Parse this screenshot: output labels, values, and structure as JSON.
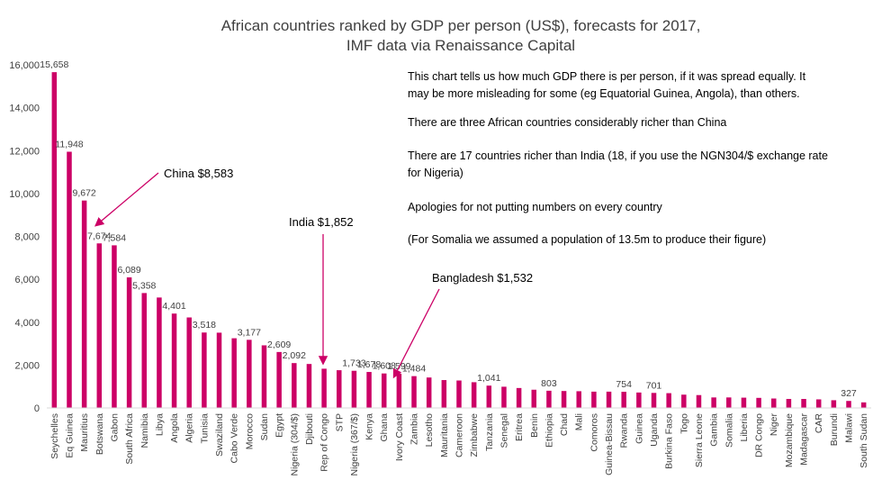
{
  "chart_data": {
    "type": "bar",
    "title": [
      "African countries ranked by GDP per person (US$), forecasts for 2017,",
      "IMF data via Renaissance Capital"
    ],
    "xlabel": "",
    "ylabel": "",
    "ylim": [
      0,
      16000
    ],
    "yticks": [
      "0",
      "2,000",
      "4,000",
      "6,000",
      "8,000",
      "10,000",
      "12,000",
      "14,000",
      "16,000"
    ],
    "grid": false,
    "legend": "none",
    "bar_color": "#cc0066",
    "categories": [
      "Seychelles",
      "Eq Guinea",
      "Mauritius",
      "Botswana",
      "Gabon",
      "South Africa",
      "Namibia",
      "Libya",
      "Angola",
      "Algeria",
      "Tunisia",
      "Swaziland",
      "Cabo Verde",
      "Morocco",
      "Sudan",
      "Egypt",
      "Nigeria (304/$)",
      "Djibouti",
      "Rep of Congo",
      "STP",
      "Nigeria (367/$)",
      "Kenya",
      "Ghana",
      "Ivory Coast",
      "Zambia",
      "Lesotho",
      "Mauritania",
      "Cameroon",
      "Zimbabwe",
      "Tanzania",
      "Senegal",
      "Eritrea",
      "Benin",
      "Ethiopia",
      "Chad",
      "Mali",
      "Comoros",
      "Guinea-Bissau",
      "Rwanda",
      "Guinea",
      "Uganda",
      "Burkina Faso",
      "Togo",
      "Sierra Leone",
      "Gambia",
      "Somalia",
      "Liberia",
      "DR Congo",
      "Niger",
      "Mozambique",
      "Madagascar",
      "CAR",
      "Burundi",
      "Malawi",
      "South Sudan"
    ],
    "values": [
      15658,
      11948,
      9672,
      7674,
      7584,
      6089,
      5358,
      5150,
      4401,
      4220,
      3518,
      3510,
      3250,
      3177,
      2920,
      2609,
      2092,
      2050,
      1830,
      1760,
      1733,
      1678,
      1608,
      1599,
      1484,
      1420,
      1300,
      1280,
      1200,
      1041,
      990,
      930,
      850,
      803,
      790,
      780,
      760,
      760,
      754,
      720,
      701,
      690,
      620,
      600,
      490,
      490,
      480,
      470,
      440,
      420,
      420,
      400,
      360,
      327,
      260
    ],
    "data_labels": [
      {
        "index": 0,
        "text": "15,658"
      },
      {
        "index": 1,
        "text": "11,948"
      },
      {
        "index": 2,
        "text": "9,672"
      },
      {
        "index": 3,
        "text": "7,674"
      },
      {
        "index": 4,
        "text": "7,584"
      },
      {
        "index": 5,
        "text": "6,089"
      },
      {
        "index": 6,
        "text": "5,358"
      },
      {
        "index": 8,
        "text": "4,401"
      },
      {
        "index": 10,
        "text": "3,518"
      },
      {
        "index": 13,
        "text": "3,177"
      },
      {
        "index": 15,
        "text": "2,609"
      },
      {
        "index": 16,
        "text": "2,092"
      },
      {
        "index": 20,
        "text": "1,733"
      },
      {
        "index": 21,
        "text": "1,678"
      },
      {
        "index": 22,
        "text": "1,608"
      },
      {
        "index": 23,
        "text": "1,599"
      },
      {
        "index": 24,
        "text": "1,484"
      },
      {
        "index": 29,
        "text": "1,041"
      },
      {
        "index": 33,
        "text": "803"
      },
      {
        "index": 38,
        "text": "754"
      },
      {
        "index": 40,
        "text": "701"
      },
      {
        "index": 53,
        "text": "327"
      }
    ],
    "annotations": [
      {
        "text": "China $8,583",
        "value": 8583,
        "position": "near Mauritius"
      },
      {
        "text": "India $1,852",
        "value": 1852,
        "position": "near Rep of Congo"
      },
      {
        "text": "Bangladesh $1,532",
        "value": 1532,
        "position": "near Ivory Coast"
      }
    ],
    "notes": [
      "This chart tells us how much GDP there is per person, if it was spread equally.  It",
      "may be more misleading for some (eg Equatorial Guinea, Angola), than others.",
      "There are three African countries considerably richer than China",
      "There are 17 countries richer than India (18, if you use the NGN304/$ exchange rate",
      "for Nigeria)",
      "Apologies for not putting numbers on every country",
      "(For Somalia we assumed a population of 13.5m to produce their figure)"
    ]
  }
}
